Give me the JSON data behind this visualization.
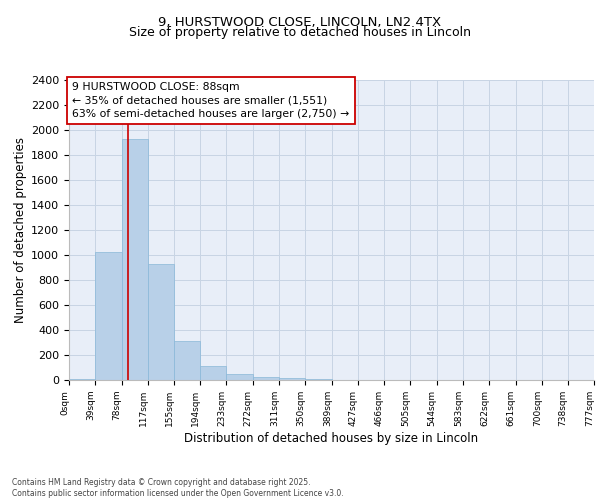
{
  "title_line1": "9, HURSTWOOD CLOSE, LINCOLN, LN2 4TX",
  "title_line2": "Size of property relative to detached houses in Lincoln",
  "xlabel": "Distribution of detached houses by size in Lincoln",
  "ylabel": "Number of detached properties",
  "bar_color": "#b8d0e8",
  "bar_edgecolor": "#89b8d8",
  "vline_color": "#cc0000",
  "vline_x": 88,
  "annotation_line1": "9 HURSTWOOD CLOSE: 88sqm",
  "annotation_line2": "← 35% of detached houses are smaller (1,551)",
  "annotation_line3": "63% of semi-detached houses are larger (2,750) →",
  "annotation_box_edgecolor": "#cc0000",
  "bins": [
    0,
    39,
    78,
    117,
    155,
    194,
    233,
    272,
    311,
    350,
    389,
    427,
    466,
    505,
    544,
    583,
    622,
    661,
    700,
    738,
    777
  ],
  "values": [
    10,
    1025,
    1925,
    925,
    315,
    110,
    45,
    25,
    15,
    5,
    0,
    0,
    0,
    0,
    0,
    0,
    0,
    0,
    0,
    0
  ],
  "tick_labels": [
    "0sqm",
    "39sqm",
    "78sqm",
    "117sqm",
    "155sqm",
    "194sqm",
    "233sqm",
    "272sqm",
    "311sqm",
    "350sqm",
    "389sqm",
    "427sqm",
    "466sqm",
    "505sqm",
    "544sqm",
    "583sqm",
    "622sqm",
    "661sqm",
    "700sqm",
    "738sqm",
    "777sqm"
  ],
  "ylim": [
    0,
    2400
  ],
  "yticks": [
    0,
    200,
    400,
    600,
    800,
    1000,
    1200,
    1400,
    1600,
    1800,
    2000,
    2200,
    2400
  ],
  "grid_color": "#c8d4e4",
  "background_color": "#e8eef8",
  "footer_text": "Contains HM Land Registry data © Crown copyright and database right 2025.\nContains public sector information licensed under the Open Government Licence v3.0.",
  "title_fontsize": 9.5,
  "subtitle_fontsize": 9.0,
  "annot_fontsize": 7.8,
  "axis_label_fontsize": 8.5,
  "ytick_fontsize": 8.0,
  "xtick_fontsize": 6.5,
  "footer_fontsize": 5.5
}
